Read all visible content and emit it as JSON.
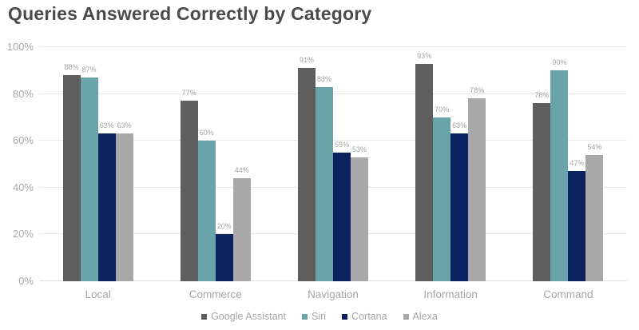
{
  "title": "Queries Answered Correctly by Category",
  "chart_data": {
    "type": "bar",
    "title": "Queries Answered Correctly by Category",
    "categories": [
      "Local",
      "Commerce",
      "Navigation",
      "Information",
      "Command"
    ],
    "series": [
      {
        "name": "Google Assistant",
        "color": "#5e5e5e",
        "values": [
          88,
          77,
          91,
          93,
          76
        ]
      },
      {
        "name": "Siri",
        "color": "#6aa4ab",
        "values": [
          87,
          60,
          83,
          70,
          90
        ]
      },
      {
        "name": "Cortana",
        "color": "#0c2261",
        "values": [
          63,
          20,
          55,
          63,
          47
        ]
      },
      {
        "name": "Alexa",
        "color": "#a8a8a8",
        "values": [
          63,
          44,
          53,
          78,
          54
        ]
      }
    ],
    "value_label_suffix": "%",
    "xlabel": "",
    "ylabel": "",
    "ylim": [
      0,
      100
    ],
    "y_ticks": [
      {
        "value": 0,
        "label": "0%"
      },
      {
        "value": 20,
        "label": "20%"
      },
      {
        "value": 40,
        "label": "40%"
      },
      {
        "value": 60,
        "label": "60%"
      },
      {
        "value": 80,
        "label": "80%"
      },
      {
        "value": 100,
        "label": "100%"
      }
    ],
    "grid": true,
    "legend_position": "bottom"
  },
  "colors": {
    "title_text": "#4a4a4a",
    "axis_text": "#a9a9a9",
    "value_label_text": "#a3a3a3",
    "gridline": "#e9e9e9",
    "background": "#ffffff"
  }
}
